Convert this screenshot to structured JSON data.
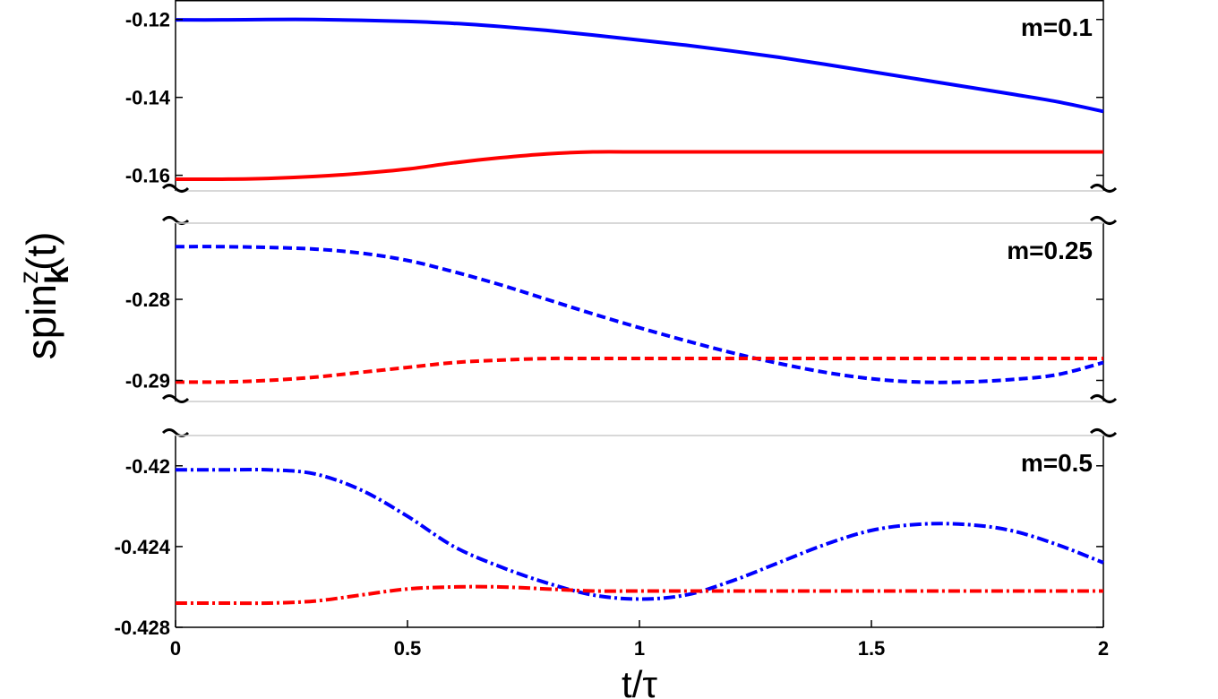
{
  "chart_data": {
    "type": "line",
    "x": [
      0,
      0.1,
      0.2,
      0.3,
      0.4,
      0.5,
      0.6,
      0.7,
      0.8,
      0.9,
      1.0,
      1.1,
      1.2,
      1.3,
      1.4,
      1.5,
      1.6,
      1.7,
      1.8,
      1.9,
      2.0
    ],
    "xlim": [
      0,
      2
    ],
    "xticks": [
      "0",
      "0.5",
      "1",
      "1.5",
      "2"
    ],
    "xlabel": "t/τ",
    "ylabel": "spin",
    "ylabel_sup": "z",
    "ylabel_sub": "k",
    "ylabel_tail": "(t)",
    "grid": false,
    "panels": [
      {
        "label": "m=0.1",
        "ylim": [
          -0.164,
          -0.115
        ],
        "yticks": [
          "-0.12",
          "-0.14",
          "-0.16"
        ],
        "yticks_values": [
          -0.12,
          -0.14,
          -0.16
        ],
        "line_style": "solid",
        "series": [
          {
            "color": "#0000ff",
            "values": [
              -0.1201,
              -0.1201,
              -0.12,
              -0.12,
              -0.1202,
              -0.1205,
              -0.121,
              -0.1218,
              -0.1228,
              -0.124,
              -0.1253,
              -0.1266,
              -0.1281,
              -0.1297,
              -0.1315,
              -0.1334,
              -0.1353,
              -0.1372,
              -0.1391,
              -0.1411,
              -0.1436
            ]
          },
          {
            "color": "#ff0000",
            "values": [
              -0.161,
              -0.161,
              -0.1608,
              -0.1603,
              -0.1595,
              -0.1584,
              -0.1568,
              -0.1555,
              -0.1545,
              -0.154,
              -0.154,
              -0.154,
              -0.154,
              -0.154,
              -0.154,
              -0.154,
              -0.154,
              -0.154,
              -0.154,
              -0.154,
              -0.154
            ]
          }
        ]
      },
      {
        "label": "m=0.25",
        "ylim": [
          -0.2926,
          -0.2706
        ],
        "yticks": [
          "-0.28",
          "-0.29"
        ],
        "yticks_values": [
          -0.28,
          -0.29
        ],
        "line_style": "dashed",
        "series": [
          {
            "color": "#0000ff",
            "values": [
              -0.2735,
              -0.2735,
              -0.2736,
              -0.2738,
              -0.2743,
              -0.2752,
              -0.2766,
              -0.2782,
              -0.28,
              -0.2818,
              -0.2835,
              -0.2851,
              -0.2866,
              -0.2879,
              -0.289,
              -0.2898,
              -0.2902,
              -0.2902,
              -0.2899,
              -0.2893,
              -0.2878
            ]
          },
          {
            "color": "#ff0000",
            "values": [
              -0.2902,
              -0.2902,
              -0.29,
              -0.2896,
              -0.289,
              -0.2884,
              -0.2878,
              -0.2875,
              -0.2873,
              -0.2873,
              -0.2873,
              -0.2873,
              -0.2873,
              -0.2873,
              -0.2873,
              -0.2873,
              -0.2873,
              -0.2873,
              -0.2873,
              -0.2873,
              -0.2873
            ]
          }
        ]
      },
      {
        "label": "m=0.5",
        "ylim": [
          -0.428,
          -0.4185
        ],
        "yticks": [
          "-0.42",
          "-0.424",
          "-0.428"
        ],
        "yticks_values": [
          -0.42,
          -0.424,
          -0.428
        ],
        "line_style": "dashdot",
        "series": [
          {
            "color": "#0000ff",
            "values": [
              -0.4202,
              -0.4202,
              -0.4202,
              -0.4204,
              -0.4212,
              -0.4225,
              -0.424,
              -0.425,
              -0.4258,
              -0.4264,
              -0.4266,
              -0.4264,
              -0.4257,
              -0.4248,
              -0.4239,
              -0.4232,
              -0.4229,
              -0.4229,
              -0.4232,
              -0.4239,
              -0.4248
            ]
          },
          {
            "color": "#ff0000",
            "values": [
              -0.4268,
              -0.4268,
              -0.4268,
              -0.4267,
              -0.4264,
              -0.4261,
              -0.426,
              -0.426,
              -0.4261,
              -0.4262,
              -0.4262,
              -0.4262,
              -0.4262,
              -0.4262,
              -0.4262,
              -0.4262,
              -0.4262,
              -0.4262,
              -0.4262,
              -0.4262,
              -0.4262
            ]
          }
        ]
      }
    ]
  }
}
